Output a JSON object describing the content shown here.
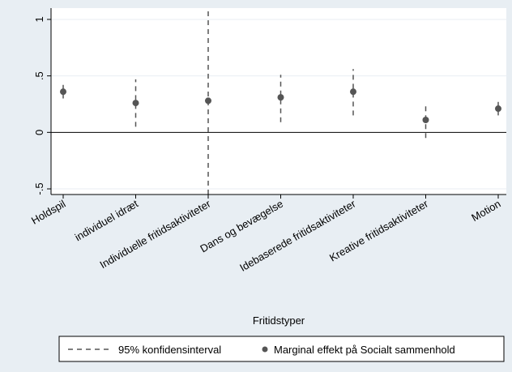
{
  "chart_data": {
    "type": "scatter",
    "xlabel": "Fritidstyper",
    "ylabel": "",
    "categories": [
      "Holdspil",
      "individuel idræt",
      "Individuelle fritidsaktiviteter",
      "Dans og bevægelse",
      "Idebaserede fritidsaktiviteter",
      "Kreative fritidsaktiviteter",
      "Motion"
    ],
    "series": [
      {
        "name": "Marginal effekt på Socialt sammenhold",
        "values": [
          0.36,
          0.26,
          0.28,
          0.31,
          0.36,
          0.11,
          0.21
        ]
      }
    ],
    "ci": {
      "name": "95% konfidensinterval",
      "lower": [
        0.3,
        0.05,
        -0.55,
        0.09,
        0.15,
        -0.05,
        0.15
      ],
      "upper": [
        0.42,
        0.47,
        1.1,
        0.51,
        0.56,
        0.25,
        0.27
      ]
    },
    "ylim": [
      -0.55,
      1.1
    ],
    "yticks": [
      -0.5,
      0,
      0.5,
      1
    ],
    "ytick_labels": [
      "-.5",
      "0",
      ".5",
      "1"
    ],
    "reference_line": 0,
    "grid": true,
    "legend_position": "bottom",
    "colors": {
      "background": "#e8eef3",
      "plot_area": "#ffffff",
      "marker": "#555555",
      "ci_line": "#555555",
      "grid": "#e8eef3"
    }
  }
}
